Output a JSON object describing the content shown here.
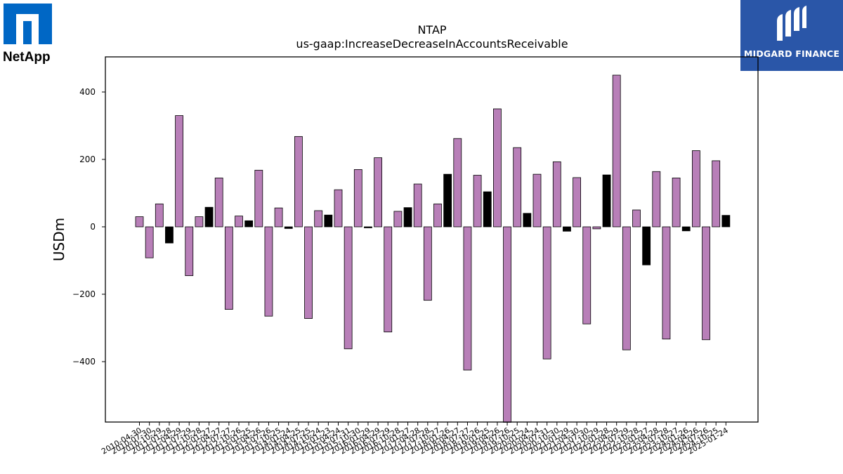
{
  "logos": {
    "left": "NetApp",
    "left_mark": "",
    "right": "MIDGARD FINANCE"
  },
  "colors": {
    "positive_semiannual": "#b87fb8",
    "other": "#000000",
    "midgard_bg": "#2a56a8",
    "netapp_blue": "#0067c5"
  },
  "chart_data": {
    "type": "bar",
    "title": "NTAP",
    "subtitle": "us-gaap:IncreaseDecreaseInAccountsReceivable",
    "xlabel": "",
    "ylabel": "USDm",
    "ylim": [
      -580,
      500
    ],
    "yticks": [
      -400,
      -200,
      0,
      200,
      400
    ],
    "grid": false,
    "categories": [
      "2010-04-30",
      "2010-07-30",
      "2010-10-29",
      "2011-01-28",
      "2011-04-29",
      "2011-07-29",
      "2011-10-28",
      "2012-01-27",
      "2012-04-27",
      "2012-07-27",
      "2012-10-26",
      "2013-01-25",
      "2013-04-26",
      "2013-07-26",
      "2013-10-25",
      "2014-01-24",
      "2014-04-25",
      "2014-07-25",
      "2014-10-24",
      "2015-01-23",
      "2015-04-24",
      "2015-07-31",
      "2015-10-30",
      "2016-01-29",
      "2016-04-29",
      "2016-07-29",
      "2016-10-28",
      "2017-01-27",
      "2017-04-28",
      "2017-07-28",
      "2017-10-27",
      "2018-01-26",
      "2018-04-27",
      "2018-07-27",
      "2018-10-26",
      "2019-01-25",
      "2019-04-26",
      "2019-07-26",
      "2019-10-25",
      "2020-01-24",
      "2020-04-24",
      "2020-07-31",
      "2020-10-30",
      "2021-01-29",
      "2021-04-30",
      "2021-07-30",
      "2021-10-29",
      "2022-01-28",
      "2022-04-29",
      "2022-07-29",
      "2022-10-28",
      "2023-01-27",
      "2023-04-28",
      "2023-07-28",
      "2023-10-27",
      "2024-01-26",
      "2024-04-26",
      "2024-07-26",
      "2024-10-25",
      "2025-01-24"
    ],
    "values": [
      30,
      -92,
      68,
      -48,
      330,
      -145,
      30,
      58,
      145,
      -245,
      32,
      18,
      168,
      -265,
      56,
      -5,
      268,
      -272,
      48,
      35,
      110,
      -362,
      170,
      -3,
      205,
      -312,
      46,
      57,
      127,
      -218,
      68,
      156,
      262,
      -425,
      153,
      104,
      350,
      -580,
      235,
      40,
      156,
      -392,
      193,
      -13,
      146,
      -288,
      -6,
      154,
      450,
      -365,
      50,
      -113,
      164,
      -333,
      145,
      -12,
      226,
      -335,
      196,
      34
    ],
    "bar_colors": [
      "#b87fb8",
      "#b87fb8",
      "#b87fb8",
      "#000000",
      "#b87fb8",
      "#b87fb8",
      "#b87fb8",
      "#000000",
      "#b87fb8",
      "#b87fb8",
      "#b87fb8",
      "#000000",
      "#b87fb8",
      "#b87fb8",
      "#b87fb8",
      "#000000",
      "#b87fb8",
      "#b87fb8",
      "#b87fb8",
      "#000000",
      "#b87fb8",
      "#b87fb8",
      "#b87fb8",
      "#000000",
      "#b87fb8",
      "#b87fb8",
      "#b87fb8",
      "#000000",
      "#b87fb8",
      "#b87fb8",
      "#b87fb8",
      "#000000",
      "#b87fb8",
      "#b87fb8",
      "#b87fb8",
      "#000000",
      "#b87fb8",
      "#b87fb8",
      "#b87fb8",
      "#000000",
      "#b87fb8",
      "#b87fb8",
      "#b87fb8",
      "#000000",
      "#b87fb8",
      "#b87fb8",
      "#b87fb8",
      "#000000",
      "#b87fb8",
      "#b87fb8",
      "#b87fb8",
      "#000000",
      "#b87fb8",
      "#b87fb8",
      "#b87fb8",
      "#000000",
      "#b87fb8",
      "#b87fb8",
      "#b87fb8",
      "#000000"
    ]
  }
}
